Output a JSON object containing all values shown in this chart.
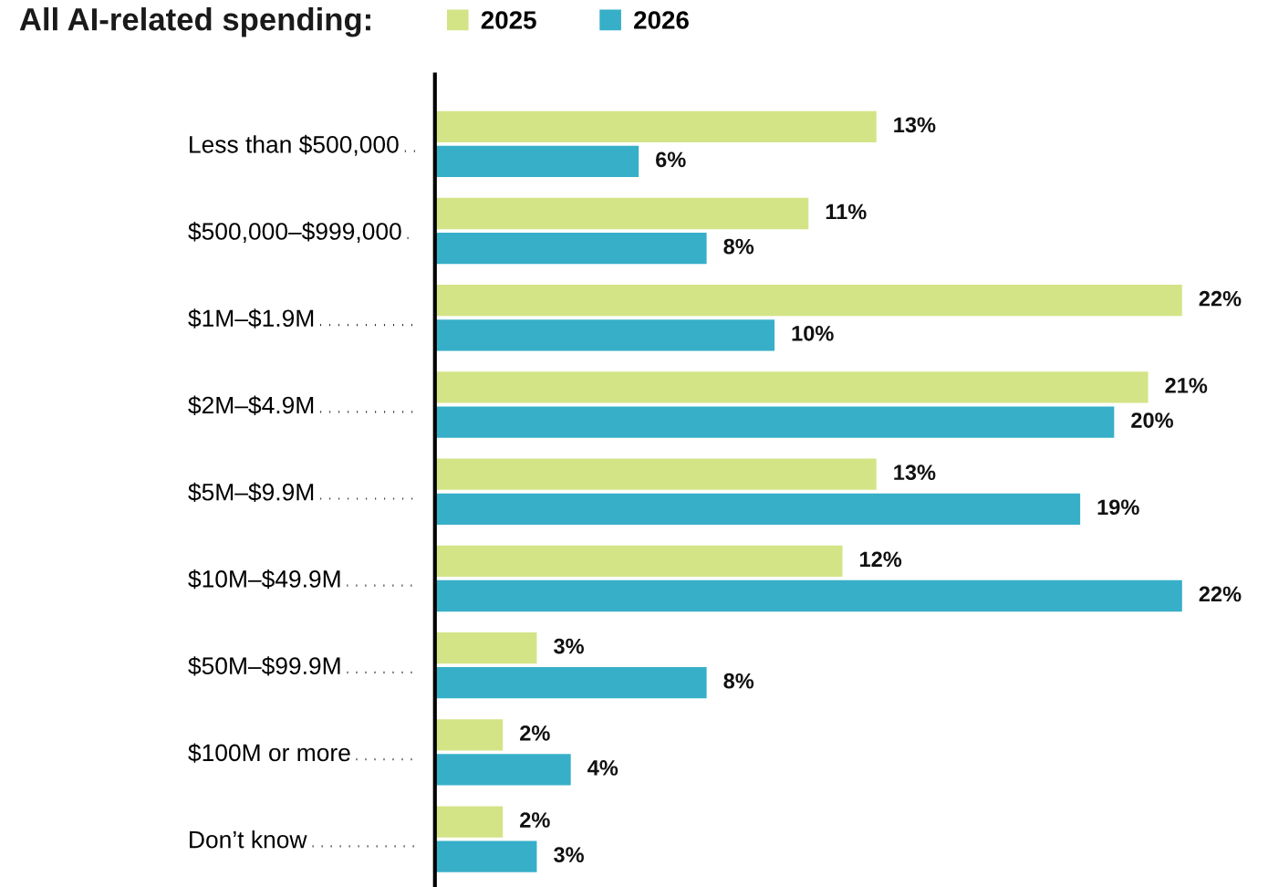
{
  "chart_data": {
    "type": "bar",
    "orientation": "horizontal",
    "title": "All AI-related spending:",
    "categories": [
      "Less than $500,000",
      "$500,000–$999,000",
      "$1M–$1.9M",
      "$2M–$4.9M",
      "$5M–$9.9M",
      "$10M–$49.9M",
      "$50M–$99.9M",
      "$100M or more",
      "Don’t know"
    ],
    "series": [
      {
        "name": "2025",
        "color": "#d3e487",
        "values": [
          13,
          11,
          22,
          21,
          13,
          12,
          3,
          2,
          2
        ],
        "value_labels": [
          "13%",
          "11%",
          "22%",
          "21%",
          "13%",
          "12%",
          "3%",
          "2%",
          "2%"
        ]
      },
      {
        "name": "2026",
        "color": "#37afc8",
        "values": [
          6,
          8,
          10,
          20,
          19,
          22,
          8,
          4,
          3
        ],
        "value_labels": [
          "6%",
          "8%",
          "10%",
          "20%",
          "19%",
          "22%",
          "8%",
          "4%",
          "3%"
        ]
      }
    ],
    "legend": "top",
    "grid": false,
    "tick_labels": "y"
  }
}
